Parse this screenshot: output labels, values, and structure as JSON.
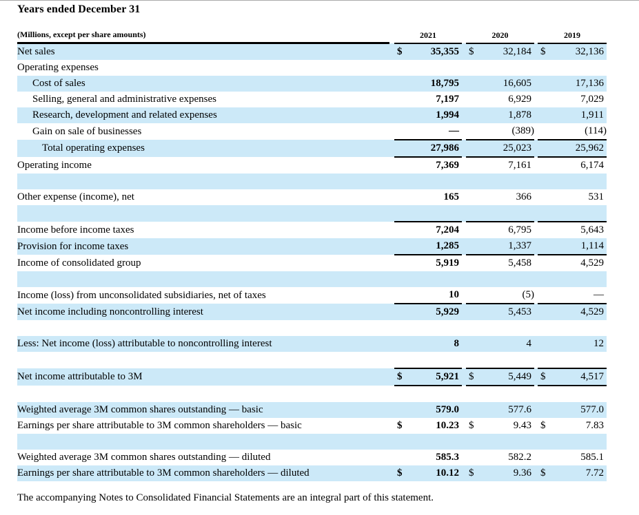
{
  "page": {
    "title": "Years ended December 31",
    "footnote": "The accompanying Notes to Consolidated Financial Statements are an integral part of this statement."
  },
  "colors": {
    "row_highlight": "#cce9f8",
    "rule": "#000000",
    "text": "#000000"
  },
  "table": {
    "caption": "(Millions, except per share amounts)",
    "years": [
      "2021",
      "2020",
      "2019"
    ],
    "currency_symbol": "$",
    "rows": [
      {
        "label": "Net sales",
        "indent": 0,
        "shaded": true,
        "dollar": true,
        "values": [
          "35,355",
          "32,184",
          "32,136"
        ]
      },
      {
        "label": "Operating expenses",
        "indent": 0,
        "shaded": false,
        "dollar": false,
        "values": null
      },
      {
        "label": "Cost of sales",
        "indent": 1,
        "shaded": true,
        "dollar": false,
        "values": [
          "18,795",
          "16,605",
          "17,136"
        ]
      },
      {
        "label": "Selling, general and administrative expenses",
        "indent": 1,
        "shaded": false,
        "dollar": false,
        "values": [
          "7,197",
          "6,929",
          "7,029"
        ]
      },
      {
        "label": "Research, development and related expenses",
        "indent": 1,
        "shaded": true,
        "dollar": false,
        "values": [
          "1,994",
          "1,878",
          "1,911"
        ]
      },
      {
        "label": "Gain on sale of businesses",
        "indent": 1,
        "shaded": false,
        "dollar": false,
        "values": [
          "—",
          "(389)",
          "(114)"
        ],
        "rule_below": true
      },
      {
        "label": "Total operating expenses",
        "indent": 2,
        "shaded": true,
        "dollar": false,
        "values": [
          "27,986",
          "25,023",
          "25,962"
        ],
        "rule_below": true
      },
      {
        "label": "Operating income",
        "indent": 0,
        "shaded": false,
        "dollar": false,
        "values": [
          "7,369",
          "7,161",
          "6,174"
        ]
      },
      {
        "label": "",
        "indent": 0,
        "shaded": true,
        "dollar": false,
        "values": null
      },
      {
        "label": "Other expense (income), net",
        "indent": 0,
        "shaded": false,
        "dollar": false,
        "values": [
          "165",
          "366",
          "531"
        ]
      },
      {
        "label": "",
        "indent": 0,
        "shaded": true,
        "dollar": false,
        "values": null,
        "rule_below": true
      },
      {
        "label": "Income before income taxes",
        "indent": 0,
        "shaded": false,
        "dollar": false,
        "values": [
          "7,204",
          "6,795",
          "5,643"
        ]
      },
      {
        "label": "Provision for income taxes",
        "indent": 0,
        "shaded": true,
        "dollar": false,
        "values": [
          "1,285",
          "1,337",
          "1,114"
        ],
        "rule_below": true
      },
      {
        "label": "Income of consolidated group",
        "indent": 0,
        "shaded": false,
        "dollar": false,
        "values": [
          "5,919",
          "5,458",
          "4,529"
        ]
      },
      {
        "label": "",
        "indent": 0,
        "shaded": true,
        "dollar": false,
        "values": null
      },
      {
        "label": "Income (loss) from unconsolidated subsidiaries, net of taxes",
        "indent": 0,
        "shaded": false,
        "dollar": false,
        "values": [
          "10",
          "(5)",
          "—"
        ],
        "rule_below": true
      },
      {
        "label": "Net income including noncontrolling interest",
        "indent": 0,
        "shaded": true,
        "dollar": false,
        "values": [
          "5,929",
          "5,453",
          "4,529"
        ]
      },
      {
        "label": "",
        "indent": 0,
        "shaded": false,
        "dollar": false,
        "values": null
      },
      {
        "label": "Less: Net income (loss) attributable to noncontrolling interest",
        "indent": 0,
        "shaded": true,
        "dollar": false,
        "values": [
          "8",
          "4",
          "12"
        ]
      },
      {
        "label": "",
        "indent": 0,
        "shaded": false,
        "dollar": false,
        "values": null
      },
      {
        "label": "Net income attributable to 3M",
        "indent": 0,
        "shaded": true,
        "dollar": true,
        "values": [
          "5,921",
          "5,449",
          "4,517"
        ],
        "rule_above": true,
        "rule_below": true
      },
      {
        "label": "",
        "indent": 0,
        "shaded": false,
        "dollar": false,
        "values": null
      },
      {
        "label": "Weighted average 3M common shares outstanding — basic",
        "indent": 0,
        "shaded": true,
        "dollar": false,
        "values": [
          "579.0",
          "577.6",
          "577.0"
        ]
      },
      {
        "label": "Earnings per share attributable to 3M common shareholders — basic",
        "indent": 0,
        "shaded": false,
        "dollar": true,
        "values": [
          "10.23",
          "9.43",
          "7.83"
        ]
      },
      {
        "label": "",
        "indent": 0,
        "shaded": true,
        "dollar": false,
        "values": null
      },
      {
        "label": "Weighted average 3M common shares outstanding — diluted",
        "indent": 0,
        "shaded": false,
        "dollar": false,
        "values": [
          "585.3",
          "582.2",
          "585.1"
        ]
      },
      {
        "label": "Earnings per share attributable to 3M common shareholders — diluted",
        "indent": 0,
        "shaded": true,
        "dollar": true,
        "values": [
          "10.12",
          "9.36",
          "7.72"
        ]
      }
    ]
  }
}
